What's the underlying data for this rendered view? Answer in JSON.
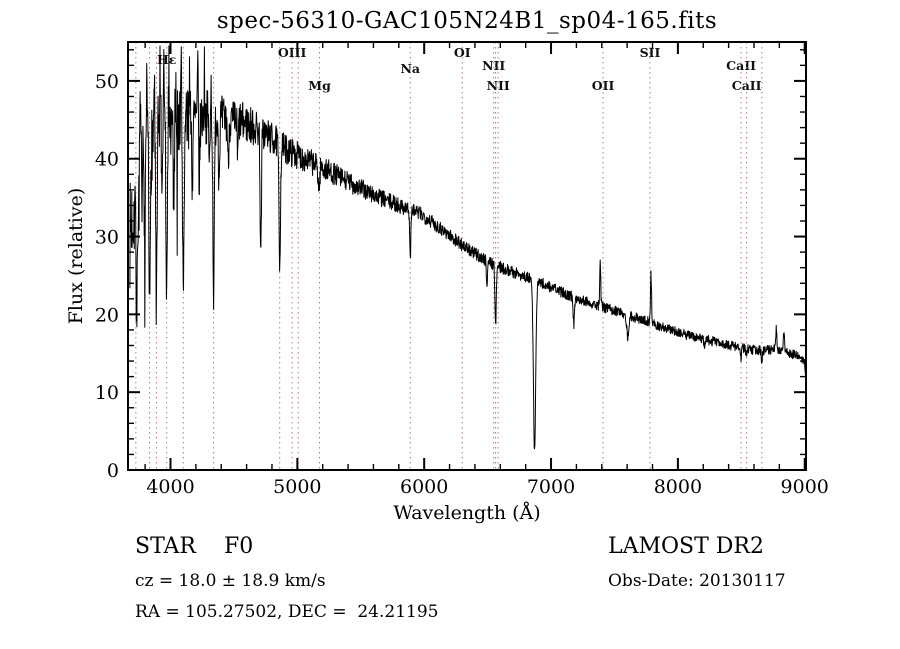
{
  "chart_data": {
    "type": "line",
    "title": "spec-56310-GAC105N24B1_sp04-165.fits",
    "xlabel": "Wavelength (Å)",
    "ylabel": "Flux (relative)",
    "xlim": [
      3665,
      9010
    ],
    "ylim": [
      0,
      55
    ],
    "xticks": [
      4000,
      5000,
      6000,
      7000,
      8000,
      9000
    ],
    "yticks": [
      0,
      10,
      20,
      30,
      40,
      50
    ],
    "x_minor_step": 200,
    "y_minor_step": 2,
    "grid": false,
    "line_color": "#000000",
    "marker_line_color": "#c47a72",
    "marker_label_color": "#111111",
    "spectral_lines": [
      {
        "label": "",
        "wavelength": 3727,
        "dy": 0
      },
      {
        "label": "",
        "wavelength": 3835,
        "dy": 0
      },
      {
        "label": "",
        "wavelength": 3889,
        "dy": 0
      },
      {
        "label": "Hε",
        "wavelength": 3970,
        "dy": 22
      },
      {
        "label": "",
        "wavelength": 4101,
        "dy": 0
      },
      {
        "label": "",
        "wavelength": 4340,
        "dy": 0
      },
      {
        "label": "",
        "wavelength": 4861,
        "dy": 0
      },
      {
        "label": "OIII",
        "wavelength": 4959,
        "dy": 15
      },
      {
        "label": "",
        "wavelength": 5007,
        "dy": 0
      },
      {
        "label": "Mg",
        "wavelength": 5175,
        "dy": 48
      },
      {
        "label": "Na",
        "wavelength": 5890,
        "dy": 31
      },
      {
        "label": "OI",
        "wavelength": 6300,
        "dy": 15
      },
      {
        "label": "NII",
        "wavelength": 6548,
        "dy": 28
      },
      {
        "label": "",
        "wavelength": 6563,
        "dy": 0
      },
      {
        "label": "NII",
        "wavelength": 6583,
        "dy": 48
      },
      {
        "label": "OII",
        "wavelength": 7410,
        "dy": 48
      },
      {
        "label": "SII",
        "wavelength": 7780,
        "dy": 15
      },
      {
        "label": "CaII",
        "wavelength": 8498,
        "dy": 28
      },
      {
        "label": "CaII",
        "wavelength": 8542,
        "dy": 48
      },
      {
        "label": "",
        "wavelength": 8662,
        "dy": 0
      }
    ],
    "continuum": [
      [
        3680,
        30
      ],
      [
        3700,
        33
      ],
      [
        3730,
        35
      ],
      [
        3760,
        37
      ],
      [
        3800,
        39.5
      ],
      [
        3850,
        42
      ],
      [
        3900,
        43.5
      ],
      [
        3950,
        44
      ],
      [
        4000,
        44.5
      ],
      [
        4060,
        45
      ],
      [
        4120,
        44.5
      ],
      [
        4180,
        45
      ],
      [
        4240,
        45.2
      ],
      [
        4300,
        45.5
      ],
      [
        4360,
        45.2
      ],
      [
        4420,
        45
      ],
      [
        4480,
        44.8
      ],
      [
        4540,
        44.8
      ],
      [
        4600,
        44.5
      ],
      [
        4660,
        44
      ],
      [
        4720,
        43.5
      ],
      [
        4780,
        42.8
      ],
      [
        4830,
        42.2
      ],
      [
        4900,
        41.3
      ],
      [
        4960,
        40.8
      ],
      [
        5020,
        40.3
      ],
      [
        5080,
        39.8
      ],
      [
        5140,
        39.3
      ],
      [
        5200,
        38.8
      ],
      [
        5260,
        38.3
      ],
      [
        5320,
        37.8
      ],
      [
        5380,
        37.2
      ],
      [
        5440,
        36.7
      ],
      [
        5500,
        36.2
      ],
      [
        5560,
        35.7
      ],
      [
        5620,
        35.2
      ],
      [
        5680,
        34.8
      ],
      [
        5740,
        34.4
      ],
      [
        5800,
        34
      ],
      [
        5860,
        33.7
      ],
      [
        5920,
        33.3
      ],
      [
        5980,
        32.8
      ],
      [
        6040,
        32.2
      ],
      [
        6100,
        31.4
      ],
      [
        6160,
        30.7
      ],
      [
        6220,
        29.9
      ],
      [
        6280,
        29.2
      ],
      [
        6340,
        28.4
      ],
      [
        6400,
        27.8
      ],
      [
        6460,
        27.2
      ],
      [
        6520,
        26.7
      ],
      [
        6580,
        26.2
      ],
      [
        6640,
        25.8
      ],
      [
        6700,
        25.4
      ],
      [
        6760,
        25.1
      ],
      [
        6820,
        24.7
      ],
      [
        6880,
        24.3
      ],
      [
        6940,
        23.9
      ],
      [
        7000,
        23.5
      ],
      [
        7060,
        23
      ],
      [
        7120,
        22.6
      ],
      [
        7180,
        22.2
      ],
      [
        7240,
        21.9
      ],
      [
        7300,
        21.6
      ],
      [
        7360,
        21.2
      ],
      [
        7420,
        20.9
      ],
      [
        7480,
        20.6
      ],
      [
        7540,
        20.3
      ],
      [
        7600,
        20
      ],
      [
        7660,
        19.6
      ],
      [
        7720,
        19.3
      ],
      [
        7780,
        19
      ],
      [
        7840,
        18.6
      ],
      [
        7900,
        18.3
      ],
      [
        7960,
        17.9
      ],
      [
        8020,
        17.6
      ],
      [
        8080,
        17.3
      ],
      [
        8140,
        17.1
      ],
      [
        8200,
        16.9
      ],
      [
        8260,
        16.6
      ],
      [
        8320,
        16.4
      ],
      [
        8380,
        16.1
      ],
      [
        8440,
        15.9
      ],
      [
        8500,
        15.7
      ],
      [
        8560,
        15.5
      ],
      [
        8620,
        15.4
      ],
      [
        8680,
        15.4
      ],
      [
        8740,
        15.5
      ],
      [
        8800,
        15.5
      ],
      [
        8860,
        15.2
      ],
      [
        8920,
        14.8
      ],
      [
        8980,
        14.3
      ],
      [
        9000,
        14
      ],
      [
        9004,
        13
      ],
      [
        9008,
        10
      ],
      [
        9010,
        8.5
      ]
    ],
    "absorptions": [
      [
        3735,
        5,
        16
      ],
      [
        3798,
        4,
        14
      ],
      [
        3835,
        5,
        22
      ],
      [
        3889,
        5,
        24
      ],
      [
        3934,
        4,
        12
      ],
      [
        3970,
        5,
        24
      ],
      [
        4026,
        4,
        10
      ],
      [
        4101,
        6,
        20
      ],
      [
        4172,
        4,
        8
      ],
      [
        4227,
        4,
        8
      ],
      [
        4308,
        5,
        6
      ],
      [
        4340,
        6,
        22
      ],
      [
        4383,
        4,
        8
      ],
      [
        4455,
        4,
        6
      ],
      [
        4530,
        4,
        5
      ],
      [
        4712,
        5,
        16
      ],
      [
        4861,
        6,
        15
      ],
      [
        5170,
        6,
        3
      ],
      [
        5890,
        5,
        6
      ],
      [
        6495,
        4,
        3
      ],
      [
        6563,
        5,
        8
      ],
      [
        6870,
        9,
        22
      ],
      [
        7180,
        5,
        3.5
      ],
      [
        7605,
        8,
        3
      ],
      [
        8210,
        5,
        1.5
      ],
      [
        8498,
        4,
        1.2
      ],
      [
        8542,
        4,
        1.4
      ],
      [
        8662,
        4,
        1.4
      ]
    ],
    "emissions": [
      [
        3762,
        3,
        8
      ],
      [
        3815,
        3,
        9
      ],
      [
        3872,
        3,
        9
      ],
      [
        3918,
        3,
        8
      ],
      [
        3948,
        3,
        9
      ],
      [
        3988,
        3,
        8
      ],
      [
        4042,
        3,
        7
      ],
      [
        4085,
        3,
        7
      ],
      [
        4150,
        3,
        7
      ],
      [
        4215,
        3,
        6
      ],
      [
        4268,
        3,
        6
      ],
      [
        4320,
        3,
        5
      ],
      [
        7388,
        4,
        5.5
      ],
      [
        7788,
        4,
        6.5
      ],
      [
        8775,
        5,
        2.5
      ],
      [
        8835,
        5,
        2.5
      ]
    ],
    "noise": {
      "base": 0.6,
      "blue_amp": 6.2,
      "decay": 800,
      "seed": 7,
      "step": 2.5,
      "start": 3680,
      "end": 9010,
      "blue_dip_prob": 0.05,
      "blue_dip_max": 14,
      "blue_dip_limit": 4150
    }
  },
  "footer": {
    "left": {
      "class_line": "STAR    F0",
      "cz_line": "cz = 18.0 ± 18.9 km/s",
      "radec_line": "RA = 105.27502, DEC =  24.21195"
    },
    "right": {
      "survey_line": "LAMOST DR2",
      "obsdate_line": "Obs-Date: 20130117"
    }
  }
}
